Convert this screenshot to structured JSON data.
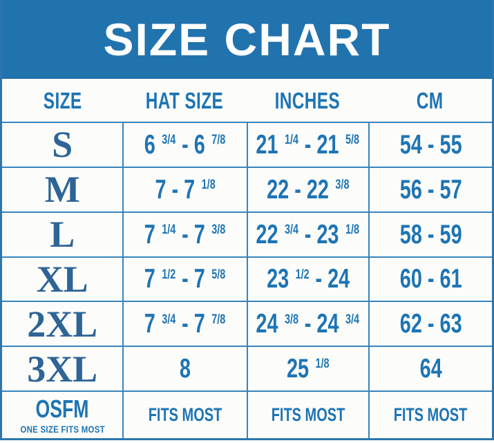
{
  "title": "SIZE CHART",
  "colors": {
    "banner_bg": "#2173ae",
    "grid_line": "#3784bc",
    "text_blue": "#1d74b4",
    "serif_blue": "#2e6496",
    "background": "#fcfcfa",
    "title_text": "#ffffff"
  },
  "columns": [
    "SIZE",
    "HAT SIZE",
    "INCHES",
    "CM"
  ],
  "rows": [
    {
      "size": "S",
      "hat": "6 {3/4} - 6 {7/8}",
      "inches": "21 {1/4} - 21 {5/8}",
      "cm": "54 - 55"
    },
    {
      "size": "M",
      "hat": "7 - 7 {1/8}",
      "inches": "22 - 22 {3/8}",
      "cm": "56 - 57"
    },
    {
      "size": "L",
      "hat": "7 {1/4} - 7 {3/8}",
      "inches": "22 {3/4} - 23 {1/8}",
      "cm": "58 - 59"
    },
    {
      "size": "XL",
      "hat": "7 {1/2} - 7 {5/8}",
      "inches": "23 {1/2} - 24",
      "cm": "60 - 61"
    },
    {
      "size": "2XL",
      "hat": "7 {3/4} - 7 {7/8}",
      "inches": "24 {3/8} - 24 {3/4}",
      "cm": "62 - 63"
    },
    {
      "size": "3XL",
      "hat": "8",
      "inches": "25 {1/8}",
      "cm": "64"
    }
  ],
  "osfm": {
    "size": "OSFM",
    "size_sub": "ONE SIZE FITS MOST",
    "hat": "FITS MOST",
    "inches": "FITS MOST",
    "cm": "FITS MOST"
  },
  "chart_data": {
    "type": "table",
    "title": "SIZE CHART",
    "columns": [
      "SIZE",
      "HAT SIZE",
      "INCHES",
      "CM"
    ],
    "rows": [
      [
        "S",
        "6 3/4 - 6 7/8",
        "21 1/4 - 21 5/8",
        "54 - 55"
      ],
      [
        "M",
        "7 - 7 1/8",
        "22 - 22 3/8",
        "56 - 57"
      ],
      [
        "L",
        "7 1/4 - 7 3/8",
        "22 3/4 - 23 1/8",
        "58 - 59"
      ],
      [
        "XL",
        "7 1/2 - 7 5/8",
        "23 1/2 - 24",
        "60 - 61"
      ],
      [
        "2XL",
        "7 3/4 - 7 7/8",
        "24 3/8 - 24 3/4",
        "62 - 63"
      ],
      [
        "3XL",
        "8",
        "25 1/8",
        "64"
      ],
      [
        "OSFM (ONE SIZE FITS MOST)",
        "FITS MOST",
        "FITS MOST",
        "FITS MOST"
      ]
    ]
  }
}
